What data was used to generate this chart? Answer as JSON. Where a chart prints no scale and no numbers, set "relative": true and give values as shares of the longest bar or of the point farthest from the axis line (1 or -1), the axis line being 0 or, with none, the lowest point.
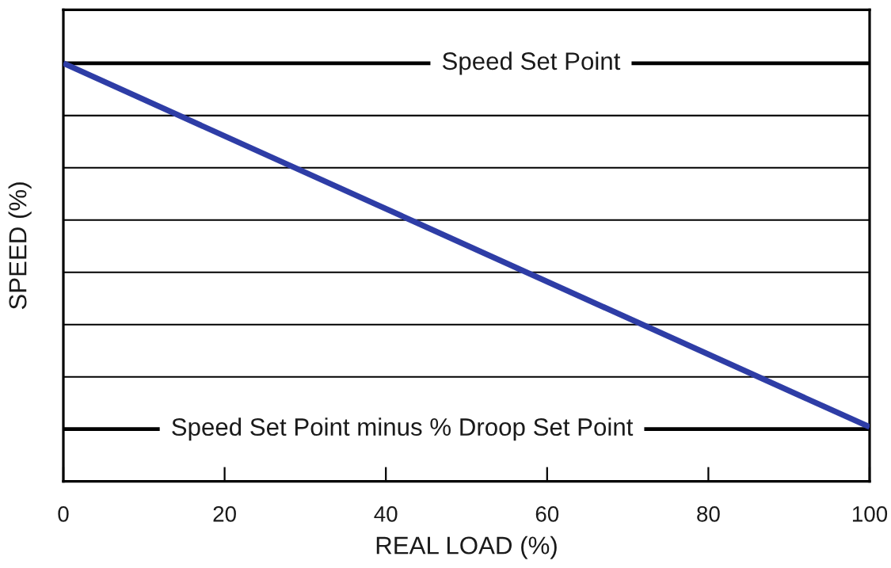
{
  "chart_data": {
    "type": "line",
    "xlabel": "REAL LOAD (%)",
    "ylabel": "SPEED (%)",
    "x": [
      0,
      100
    ],
    "series": [
      {
        "color": "#2e3da6",
        "values": [
          1,
          0.13
        ]
      }
    ],
    "relative": true,
    "xlim": [
      0,
      100
    ],
    "xticks": [
      0,
      20,
      40,
      60,
      80,
      100
    ],
    "tick_labels": "x",
    "ref_lines": [
      {
        "axis": "y",
        "value": 1,
        "label": "Speed Set Point",
        "color": "#000000"
      },
      {
        "axis": "y",
        "value": 0.875,
        "color": "#000000"
      },
      {
        "axis": "y",
        "value": 0.75,
        "color": "#000000"
      },
      {
        "axis": "y",
        "value": 0.625,
        "color": "#000000"
      },
      {
        "axis": "y",
        "value": 0.5,
        "color": "#000000"
      },
      {
        "axis": "y",
        "value": 0.375,
        "color": "#000000"
      },
      {
        "axis": "y",
        "value": 0.25,
        "color": "#000000"
      },
      {
        "axis": "y",
        "value": 0.125,
        "label": "Speed Set Point minus % Droop Set Point",
        "color": "#000000"
      }
    ]
  }
}
